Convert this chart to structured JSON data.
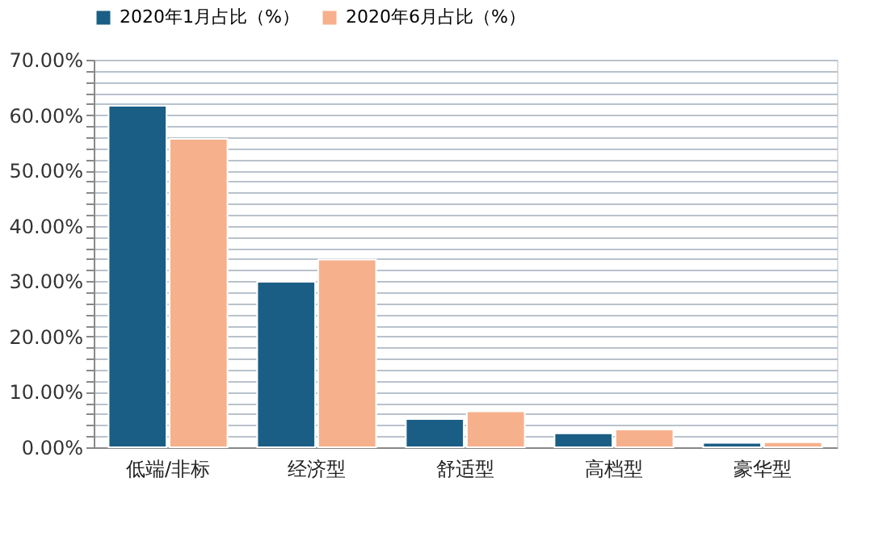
{
  "chart_data": {
    "type": "bar",
    "categories": [
      "低端/非标",
      "经济型",
      "舒适型",
      "高档型",
      "豪华型"
    ],
    "series": [
      {
        "name": "2020年1月占比（%）",
        "color": "#1b5e85",
        "values": [
          61.7,
          29.9,
          5.1,
          2.5,
          0.8
        ]
      },
      {
        "name": "2020年6月占比（%）",
        "color": "#f7b08c",
        "values": [
          55.7,
          33.9,
          6.5,
          3.2,
          0.9
        ]
      }
    ],
    "ylim": [
      0,
      70
    ],
    "yticks": [
      {
        "value": 0,
        "label": "0.00%"
      },
      {
        "value": 2,
        "label": null
      },
      {
        "value": 4,
        "label": null
      },
      {
        "value": 6,
        "label": null
      },
      {
        "value": 8,
        "label": null
      },
      {
        "value": 10,
        "label": "10.00%"
      },
      {
        "value": 12,
        "label": null
      },
      {
        "value": 14,
        "label": null
      },
      {
        "value": 16,
        "label": null
      },
      {
        "value": 18,
        "label": null
      },
      {
        "value": 20,
        "label": "20.00%"
      },
      {
        "value": 22,
        "label": null
      },
      {
        "value": 24,
        "label": null
      },
      {
        "value": 26,
        "label": null
      },
      {
        "value": 28,
        "label": null
      },
      {
        "value": 30,
        "label": "30.00%"
      },
      {
        "value": 32,
        "label": null
      },
      {
        "value": 34,
        "label": null
      },
      {
        "value": 36,
        "label": null
      },
      {
        "value": 38,
        "label": null
      },
      {
        "value": 40,
        "label": "40.00%"
      },
      {
        "value": 42,
        "label": null
      },
      {
        "value": 44,
        "label": null
      },
      {
        "value": 46,
        "label": null
      },
      {
        "value": 48,
        "label": null
      },
      {
        "value": 50,
        "label": "50.00%"
      },
      {
        "value": 52,
        "label": null
      },
      {
        "value": 54,
        "label": null
      },
      {
        "value": 56,
        "label": null
      },
      {
        "value": 58,
        "label": null
      },
      {
        "value": 60,
        "label": "60.00%"
      },
      {
        "value": 62,
        "label": null
      },
      {
        "value": 64,
        "label": null
      },
      {
        "value": 66,
        "label": null
      },
      {
        "value": 68,
        "label": null
      },
      {
        "value": 70,
        "label": "70.00%"
      }
    ],
    "grid": "y",
    "legend": "top"
  }
}
